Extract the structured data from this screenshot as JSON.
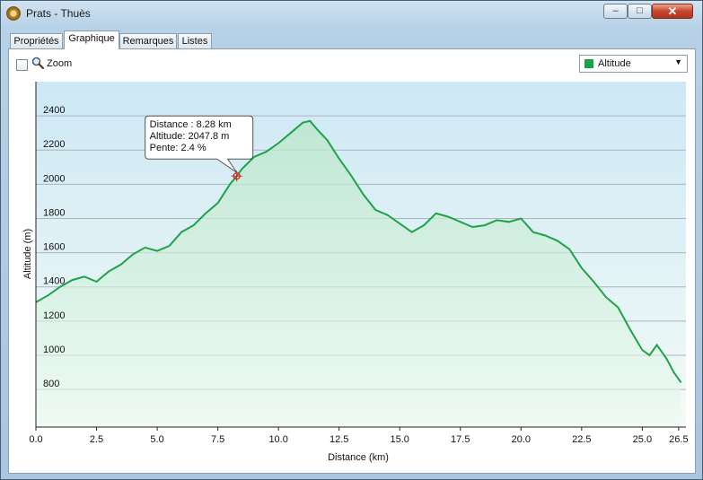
{
  "window": {
    "title": "Prats - Thuès",
    "controls": {
      "minimize": "–",
      "maximize": "□",
      "close": "✕"
    }
  },
  "tabs": [
    {
      "label": "Propriétés",
      "active": false
    },
    {
      "label": "Graphique",
      "active": true
    },
    {
      "label": "Remarques",
      "active": false
    },
    {
      "label": "Listes",
      "active": false
    }
  ],
  "toolbar": {
    "zoom_label": "Zoom",
    "zoom_checked": false,
    "zoom_icon": "magnifier-icon",
    "series_select": {
      "value": "Altitude",
      "swatch_color": "#1aa24a"
    }
  },
  "tooltip": {
    "distance": "Distance  : 8.28 km",
    "altitude": "Altitude: 2047.8 m",
    "pente": "Pente: 2.4 %"
  },
  "chart_data": {
    "type": "area",
    "xlabel": "Distance  (km)",
    "ylabel": "Altitude (m)",
    "xlim": [
      0,
      26.8
    ],
    "ylim": [
      580,
      2600
    ],
    "x_ticks": [
      0,
      2.5,
      5,
      7.5,
      10,
      12.5,
      15,
      17.5,
      20,
      22.5,
      25,
      26.5
    ],
    "x_tick_labels": [
      "0.0",
      "2.5",
      "5.0",
      "7.5",
      "10.0",
      "12.5",
      "15.0",
      "17.5",
      "20.0",
      "22.5",
      "25.0",
      "26.5"
    ],
    "y_ticks": [
      800,
      1000,
      1200,
      1400,
      1600,
      1800,
      2000,
      2200,
      2400
    ],
    "y_tick_labels": [
      "800",
      "1000",
      "1200",
      "1400",
      "1600",
      "1800",
      "2000",
      "2200",
      "2400"
    ],
    "grid": true,
    "line_color": "#1fa34a",
    "series": [
      {
        "name": "Altitude",
        "x": [
          0,
          0.5,
          1,
          1.5,
          2,
          2.5,
          3,
          3.5,
          4,
          4.5,
          5,
          5.5,
          6,
          6.5,
          7,
          7.5,
          8,
          8.28,
          8.5,
          9,
          9.5,
          10,
          10.5,
          11,
          11.3,
          11.6,
          12,
          12.5,
          13,
          13.5,
          14,
          14.5,
          15,
          15.5,
          16,
          16.5,
          17,
          17.5,
          18,
          18.5,
          19,
          19.5,
          20,
          20.5,
          21,
          21.5,
          22,
          22.5,
          23,
          23.5,
          24,
          24.5,
          25,
          25.3,
          25.6,
          26,
          26.3,
          26.6
        ],
        "y": [
          1310,
          1350,
          1400,
          1440,
          1460,
          1430,
          1490,
          1530,
          1590,
          1630,
          1610,
          1640,
          1720,
          1760,
          1830,
          1890,
          2000,
          2048,
          2090,
          2160,
          2190,
          2240,
          2300,
          2360,
          2370,
          2320,
          2260,
          2150,
          2050,
          1940,
          1850,
          1820,
          1770,
          1720,
          1760,
          1830,
          1810,
          1780,
          1750,
          1760,
          1790,
          1780,
          1800,
          1720,
          1700,
          1670,
          1620,
          1510,
          1430,
          1340,
          1280,
          1150,
          1030,
          1000,
          1060,
          980,
          900,
          840
        ]
      }
    ],
    "selected_point": {
      "x": 8.28,
      "y": 2047.8
    }
  }
}
